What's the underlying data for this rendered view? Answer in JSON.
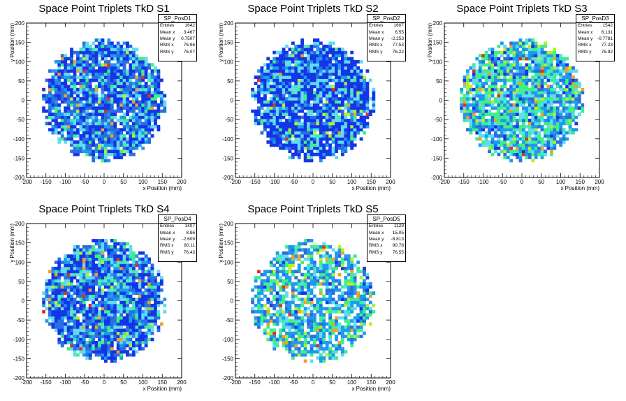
{
  "chart_data": [
    {
      "type": "heatmap",
      "histogram": "SP_PosD1",
      "title": "Space Point Triplets TkD S1",
      "xlabel": "x Position (mm)",
      "ylabel": "y Position (mm)",
      "xlim": [
        -200,
        200
      ],
      "ylim": [
        -200,
        200
      ],
      "x_ticks": [
        -200,
        -150,
        -100,
        -50,
        0,
        50,
        100,
        150,
        200
      ],
      "y_ticks": [
        -200,
        -150,
        -100,
        -50,
        0,
        50,
        100,
        150,
        200
      ],
      "distribution": {
        "shape": "disc",
        "radius_mm": 160,
        "bin_mm": 8,
        "palette": "dense-blue",
        "seed": 11
      },
      "stats": [
        {
          "label": "Entries",
          "value": "1642"
        },
        {
          "label": "Mean x",
          "value": "3.467"
        },
        {
          "label": "Mean y",
          "value": "0.7507"
        },
        {
          "label": "RMS x",
          "value": "76.96"
        },
        {
          "label": "RMS y",
          "value": "76.07"
        }
      ]
    },
    {
      "type": "heatmap",
      "histogram": "SP_PosD2",
      "title": "Space Point Triplets TkD S2",
      "xlabel": "x Position (mm)",
      "ylabel": "y Position (mm)",
      "xlim": [
        -200,
        200
      ],
      "ylim": [
        -200,
        200
      ],
      "x_ticks": [
        -200,
        -150,
        -100,
        -50,
        0,
        50,
        100,
        150,
        200
      ],
      "y_ticks": [
        -200,
        -150,
        -100,
        -50,
        0,
        50,
        100,
        150,
        200
      ],
      "distribution": {
        "shape": "disc",
        "radius_mm": 160,
        "bin_mm": 8,
        "palette": "deep-blue",
        "seed": 23
      },
      "stats": [
        {
          "label": "Entries",
          "value": "1607"
        },
        {
          "label": "Mean x",
          "value": "6.55"
        },
        {
          "label": "Mean y",
          "value": "-2.253"
        },
        {
          "label": "RMS x",
          "value": "77.53"
        },
        {
          "label": "RMS y",
          "value": "76.22"
        }
      ]
    },
    {
      "type": "heatmap",
      "histogram": "SP_PosD3",
      "title": "Space Point Triplets TkD S3",
      "xlabel": "x Position (mm)",
      "ylabel": "y Position (mm)",
      "xlim": [
        -200,
        200
      ],
      "ylim": [
        -200,
        200
      ],
      "x_ticks": [
        -200,
        -150,
        -100,
        -50,
        0,
        50,
        100,
        150,
        200
      ],
      "y_ticks": [
        -200,
        -150,
        -100,
        -50,
        0,
        50,
        100,
        150,
        200
      ],
      "distribution": {
        "shape": "disc",
        "radius_mm": 160,
        "bin_mm": 8,
        "palette": "light-green",
        "seed": 37
      },
      "stats": [
        {
          "label": "Entries",
          "value": "1542"
        },
        {
          "label": "Mean x",
          "value": "6.131"
        },
        {
          "label": "Mean y",
          "value": "-0.7781"
        },
        {
          "label": "RMS x",
          "value": "77.23"
        },
        {
          "label": "RMS y",
          "value": "76.92"
        }
      ]
    },
    {
      "type": "heatmap",
      "histogram": "SP_PosD4",
      "title": "Space Point Triplets TkD S4",
      "xlabel": "x Position (mm)",
      "ylabel": "y Position (mm)",
      "xlim": [
        -200,
        200
      ],
      "ylim": [
        -200,
        200
      ],
      "x_ticks": [
        -200,
        -150,
        -100,
        -50,
        0,
        50,
        100,
        150,
        200
      ],
      "y_ticks": [
        -200,
        -150,
        -100,
        -50,
        0,
        50,
        100,
        150,
        200
      ],
      "distribution": {
        "shape": "disc",
        "radius_mm": 160,
        "bin_mm": 8,
        "palette": "dense-blue",
        "seed": 41
      },
      "stats": [
        {
          "label": "Entries",
          "value": "1407"
        },
        {
          "label": "Mean x",
          "value": "8.86"
        },
        {
          "label": "Mean y",
          "value": "-2.609"
        },
        {
          "label": "RMS x",
          "value": "80.11"
        },
        {
          "label": "RMS y",
          "value": "76.43"
        }
      ]
    },
    {
      "type": "heatmap",
      "histogram": "SP_PosD5",
      "title": "Space Point Triplets TkD S5",
      "xlabel": "x Position (mm)",
      "ylabel": "y Position (mm)",
      "xlim": [
        -200,
        200
      ],
      "ylim": [
        -200,
        200
      ],
      "x_ticks": [
        -200,
        -150,
        -100,
        -50,
        0,
        50,
        100,
        150,
        200
      ],
      "y_ticks": [
        -200,
        -150,
        -100,
        -50,
        0,
        50,
        100,
        150,
        200
      ],
      "distribution": {
        "shape": "disc",
        "radius_mm": 160,
        "bin_mm": 8,
        "palette": "sparse-light",
        "seed": 53
      },
      "stats": [
        {
          "label": "Entries",
          "value": "1129"
        },
        {
          "label": "Mean x",
          "value": "15.05"
        },
        {
          "label": "Mean y",
          "value": "-8.813"
        },
        {
          "label": "RMS x",
          "value": "80.78"
        },
        {
          "label": "RMS y",
          "value": "76.55"
        }
      ]
    }
  ],
  "colors": {
    "dark-blue": "#1535e8",
    "blue": "#2a6fe0",
    "azure": "#1e9af0",
    "cyan": "#5fdcf0",
    "green": "#3cf08a",
    "yellow-green": "#b8ee2c",
    "orange": "#f0a030",
    "red": "#e03020"
  }
}
